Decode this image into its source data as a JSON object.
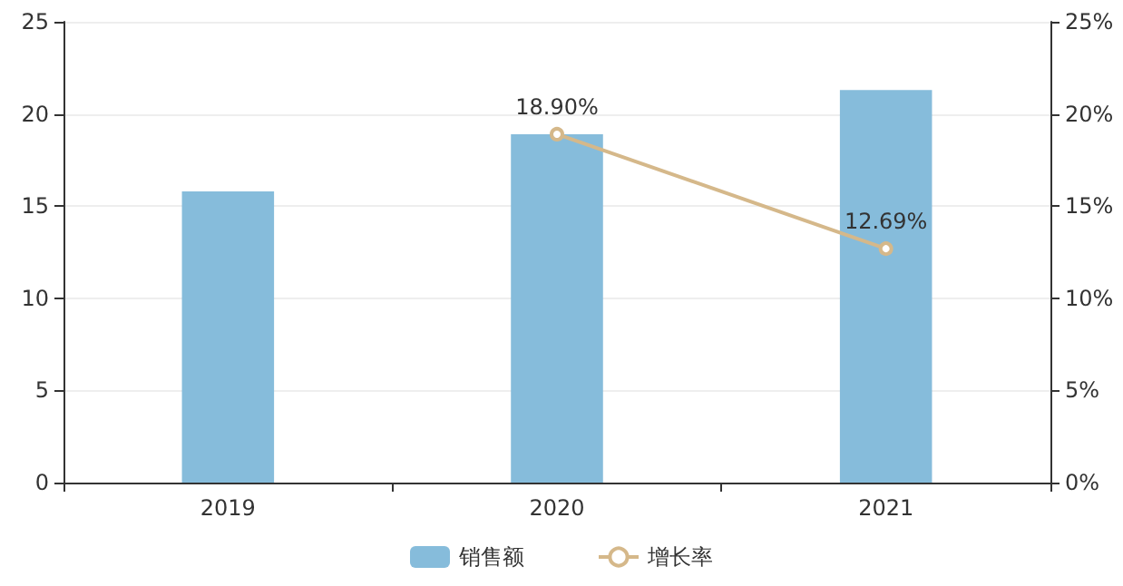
{
  "chart_data": {
    "type": "bar",
    "categories": [
      "2019",
      "2020",
      "2021"
    ],
    "series": [
      {
        "name": "销售额",
        "color": "#86bcdb",
        "values": [
          15.8,
          18.9,
          21.3
        ]
      },
      {
        "name": "增长率",
        "type": "line",
        "axis": "y2",
        "color": "#d5b88a",
        "values": [
          null,
          18.9,
          12.69
        ],
        "value_labels": [
          null,
          "18.90%",
          "12.69%"
        ]
      }
    ],
    "ylim": [
      0,
      25
    ],
    "yticks": [
      0,
      5,
      10,
      15,
      20,
      25
    ],
    "y2lim": [
      0,
      25
    ],
    "y2ticks": [
      {
        "value": 0,
        "label": "0%"
      },
      {
        "value": 5,
        "label": "5%"
      },
      {
        "value": 10,
        "label": "10%"
      },
      {
        "value": 15,
        "label": "15%"
      },
      {
        "value": 20,
        "label": "20%"
      },
      {
        "value": 25,
        "label": "25%"
      }
    ],
    "grid": "y",
    "legend": "bottom",
    "marker": "circle"
  }
}
